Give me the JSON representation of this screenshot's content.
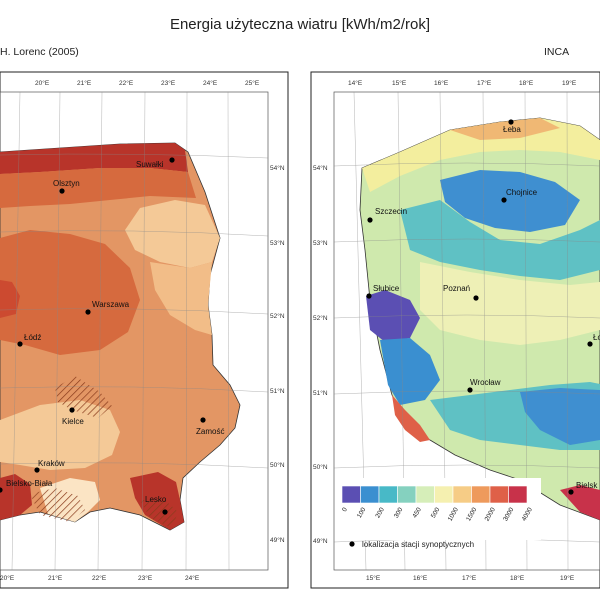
{
  "title": "Energia użyteczna wiatru [kWh/m2/rok]",
  "left_panel": {
    "source": "H. Lorenc (2005)",
    "top_ticks": [
      "20°E",
      "21°E",
      "22°E",
      "23°E",
      "24°E",
      "25°E"
    ],
    "bottom_ticks": [
      "20°E",
      "21°E",
      "22°E",
      "23°E",
      "24°E"
    ],
    "right_ticks": [
      "54°N",
      "53°N",
      "52°N",
      "51°N",
      "50°N",
      "49°N"
    ],
    "cities": [
      "Suwałki",
      "Olsztyn",
      "Warszawa",
      "Łódź",
      "Kielce",
      "Zamość",
      "Kraków",
      "Bielsko-Biała",
      "Lesko"
    ],
    "colors": {
      "dark": "#b8342a",
      "mid": "#d66a3e",
      "base": "#e39664",
      "light": "#f4c997",
      "pale": "#fbe4c4"
    }
  },
  "right_panel": {
    "source": "INCA",
    "top_ticks": [
      "14°E",
      "15°E",
      "16°E",
      "17°E",
      "18°E",
      "19°E"
    ],
    "bottom_ticks": [
      "15°E",
      "16°E",
      "17°E",
      "18°E",
      "19°E"
    ],
    "left_ticks": [
      "54°N",
      "53°N",
      "52°N",
      "51°N",
      "50°N",
      "49°N"
    ],
    "cities": [
      "Łeba",
      "Chojnice",
      "Szczecin",
      "Poznań",
      "Słubice",
      "Wrocław",
      "Ło",
      "Bielsk"
    ],
    "legend": {
      "breaks": [
        "0",
        "100",
        "200",
        "300",
        "450",
        "500",
        "1000",
        "1500",
        "2000",
        "3000",
        "4000"
      ],
      "colors": [
        "#5b4fb3",
        "#3a8fd0",
        "#48b9c7",
        "#85d1bf",
        "#d6eeb9",
        "#f5f0b0",
        "#f6cc86",
        "#ee9a5c",
        "#df6048",
        "#c8324a"
      ],
      "station_label": "lokalizacja stacji synoptycznych"
    }
  }
}
